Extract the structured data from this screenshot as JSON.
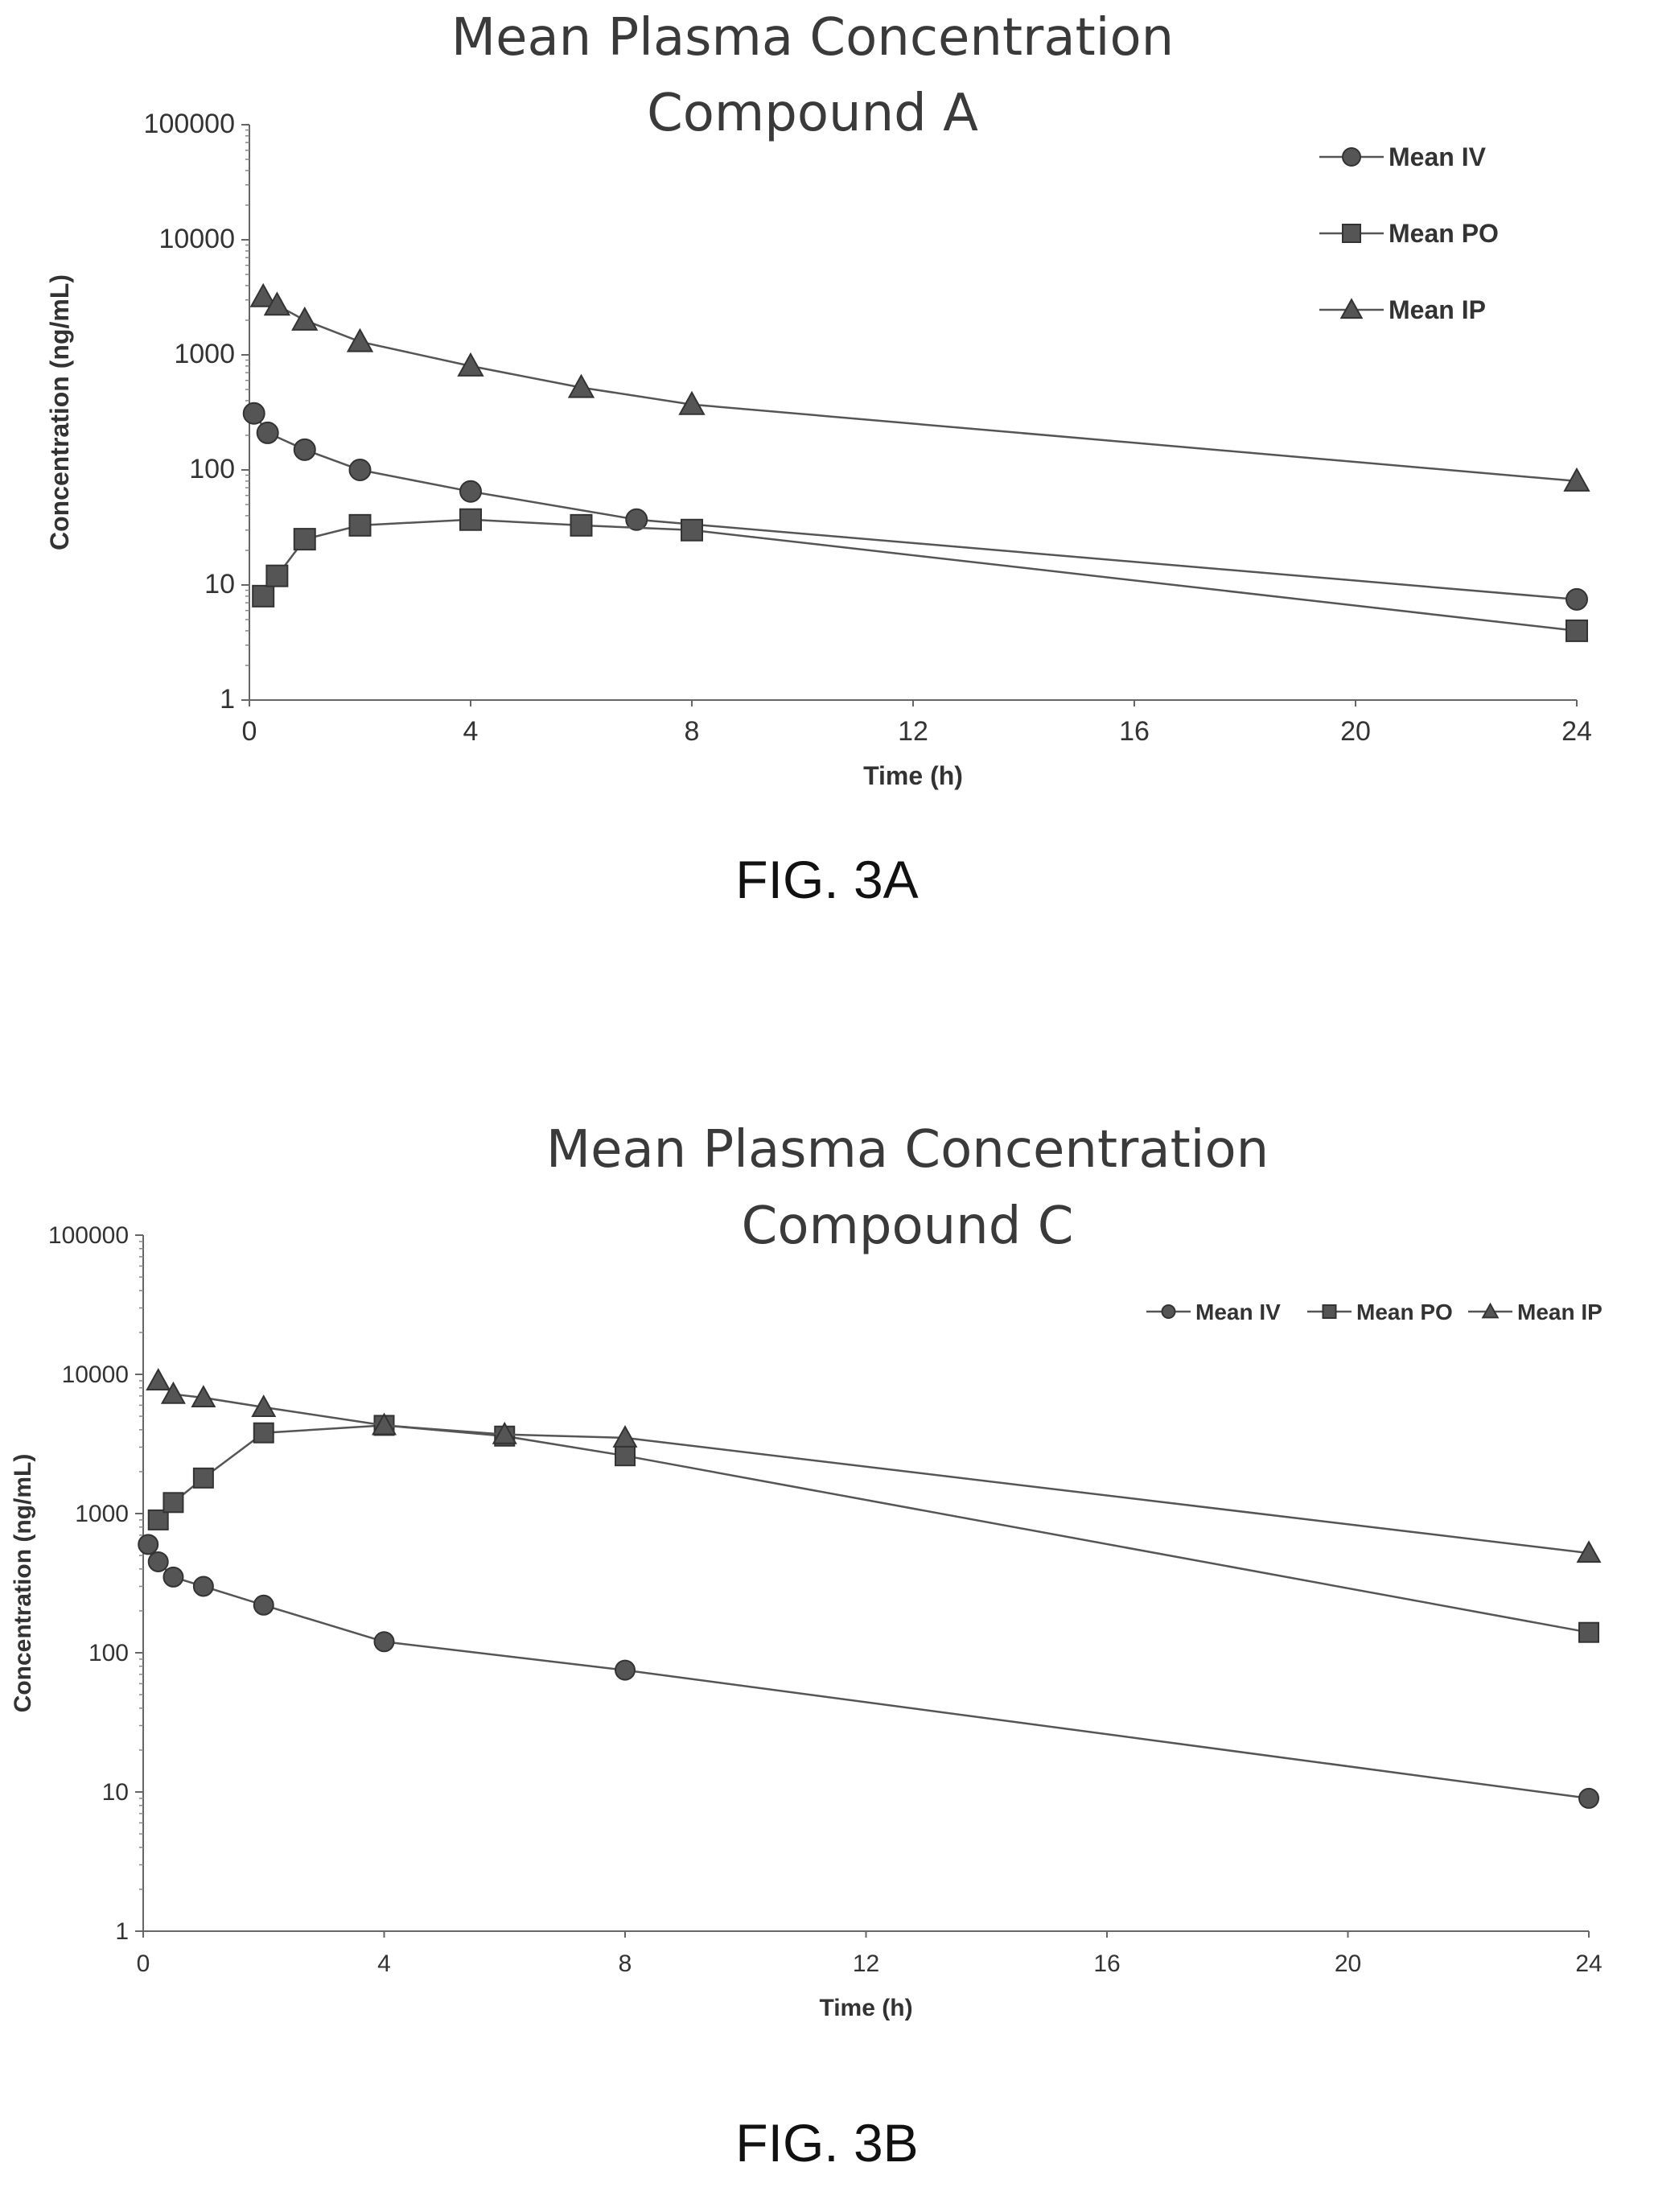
{
  "figures": [
    {
      "label": "FIG. 3A"
    },
    {
      "label": "FIG. 3B"
    }
  ],
  "chart_data": [
    {
      "type": "line",
      "title": "Mean Plasma Concentration",
      "subtitle": "Compound A",
      "xlabel": "Time (h)",
      "ylabel": "Concentration (ng/mL)",
      "xlim": [
        0,
        24
      ],
      "ylim": [
        1,
        100000
      ],
      "yscale": "log",
      "xticks": [
        "0",
        "4",
        "8",
        "12",
        "16",
        "20",
        "24"
      ],
      "yticks": [
        "1",
        "10",
        "100",
        "1000",
        "10000",
        "100000"
      ],
      "grid": false,
      "legend_position": "top-right",
      "legend_layout": "vertical",
      "series": [
        {
          "name": "Mean IV",
          "marker": "circle",
          "x": [
            0.083,
            0.33,
            1,
            2,
            4,
            7,
            24
          ],
          "y": [
            310,
            210,
            150,
            100,
            65,
            37,
            7.5
          ]
        },
        {
          "name": "Mean PO",
          "marker": "square",
          "x": [
            0.25,
            0.5,
            1,
            2,
            4,
            6,
            8,
            24
          ],
          "y": [
            8,
            12,
            25,
            33,
            37,
            33,
            30,
            4
          ]
        },
        {
          "name": "Mean IP",
          "marker": "triangle",
          "x": [
            0.25,
            0.5,
            1,
            2,
            4,
            6,
            8,
            24
          ],
          "y": [
            3200,
            2700,
            2000,
            1300,
            800,
            520,
            370,
            80
          ]
        }
      ]
    },
    {
      "type": "line",
      "title": "Mean Plasma Concentration",
      "subtitle": "Compound C",
      "xlabel": "Time (h)",
      "ylabel": "Concentration (ng/mL)",
      "xlim": [
        0,
        24
      ],
      "ylim": [
        1,
        100000
      ],
      "yscale": "log",
      "xticks": [
        "0",
        "4",
        "8",
        "12",
        "16",
        "20",
        "24"
      ],
      "yticks": [
        "1",
        "10",
        "100",
        "1000",
        "10000",
        "100000"
      ],
      "grid": false,
      "legend_position": "top-right",
      "legend_layout": "horizontal",
      "series": [
        {
          "name": "Mean IV",
          "marker": "circle",
          "x": [
            0.083,
            0.25,
            0.5,
            1,
            2,
            4,
            8,
            24
          ],
          "y": [
            600,
            450,
            350,
            300,
            220,
            120,
            75,
            9
          ]
        },
        {
          "name": "Mean PO",
          "marker": "square",
          "x": [
            0.25,
            0.5,
            1,
            2,
            4,
            6,
            8,
            24
          ],
          "y": [
            900,
            1200,
            1800,
            3800,
            4300,
            3600,
            2600,
            140
          ]
        },
        {
          "name": "Mean IP",
          "marker": "triangle",
          "x": [
            0.25,
            0.5,
            1,
            2,
            4,
            6,
            8,
            24
          ],
          "y": [
            9000,
            7200,
            6800,
            5800,
            4300,
            3700,
            3500,
            520
          ]
        }
      ]
    }
  ]
}
